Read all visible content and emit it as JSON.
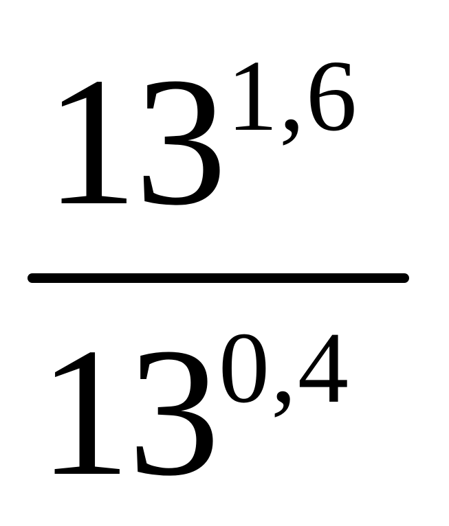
{
  "expression": {
    "numerator": {
      "base": "13",
      "exponent": "1,6"
    },
    "denominator": {
      "base": "13",
      "exponent": "0,4"
    }
  }
}
